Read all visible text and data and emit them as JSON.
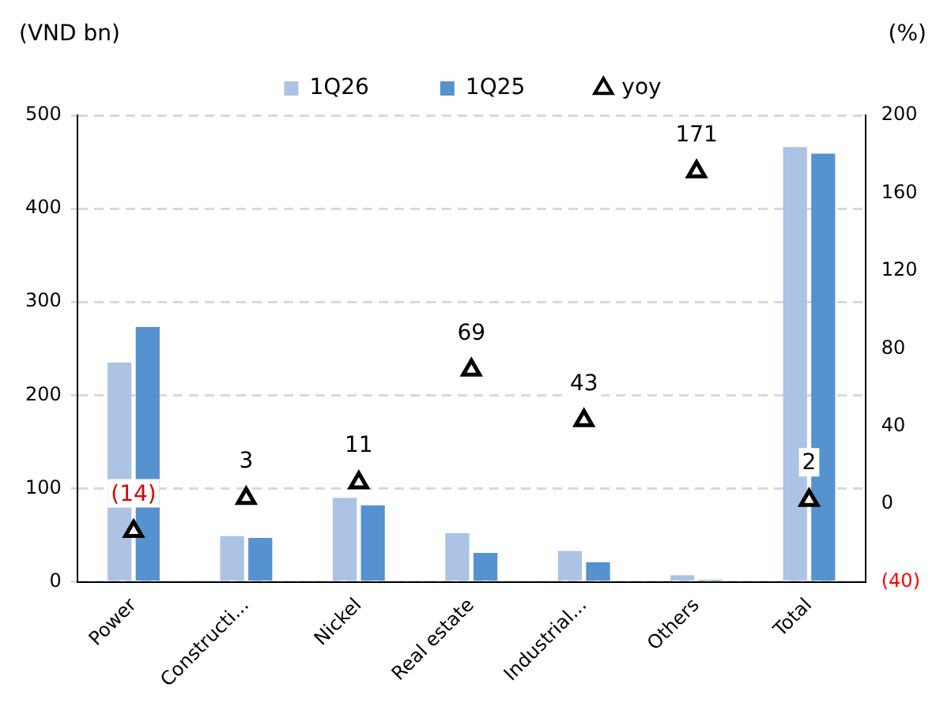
{
  "chart_data": {
    "type": "bar",
    "categories": [
      "Power",
      "Constructi...",
      "Nickel",
      "Real estate",
      "Industrial...",
      "Others",
      "Total"
    ],
    "ylabel": "(VND bn)",
    "y2label": "(%)",
    "series": [
      {
        "name": "1Q26",
        "color": "#adc3e5",
        "values": [
          235,
          49,
          90,
          52,
          33,
          7,
          466
        ]
      },
      {
        "name": "1Q25",
        "color": "#5592cf",
        "values": [
          273,
          47,
          82,
          31,
          21,
          2,
          459
        ]
      },
      {
        "name": "yoy",
        "type": "scatter",
        "axis": "y2",
        "color": "#000000",
        "marker": "triangle",
        "values": [
          -14,
          3,
          11,
          69,
          43,
          171,
          2
        ],
        "value_labels": [
          "(14)",
          "3",
          "11",
          "69",
          "43",
          "171",
          "2"
        ]
      }
    ],
    "ylim": [
      0,
      500
    ],
    "yticks": [
      0,
      100,
      200,
      300,
      400,
      500
    ],
    "y2lim": [
      -40,
      200
    ],
    "y2ticks": [
      {
        "value": -40,
        "label": "(40)"
      },
      0,
      40,
      80,
      120,
      160,
      200
    ],
    "grid": "y",
    "legend": "top"
  }
}
